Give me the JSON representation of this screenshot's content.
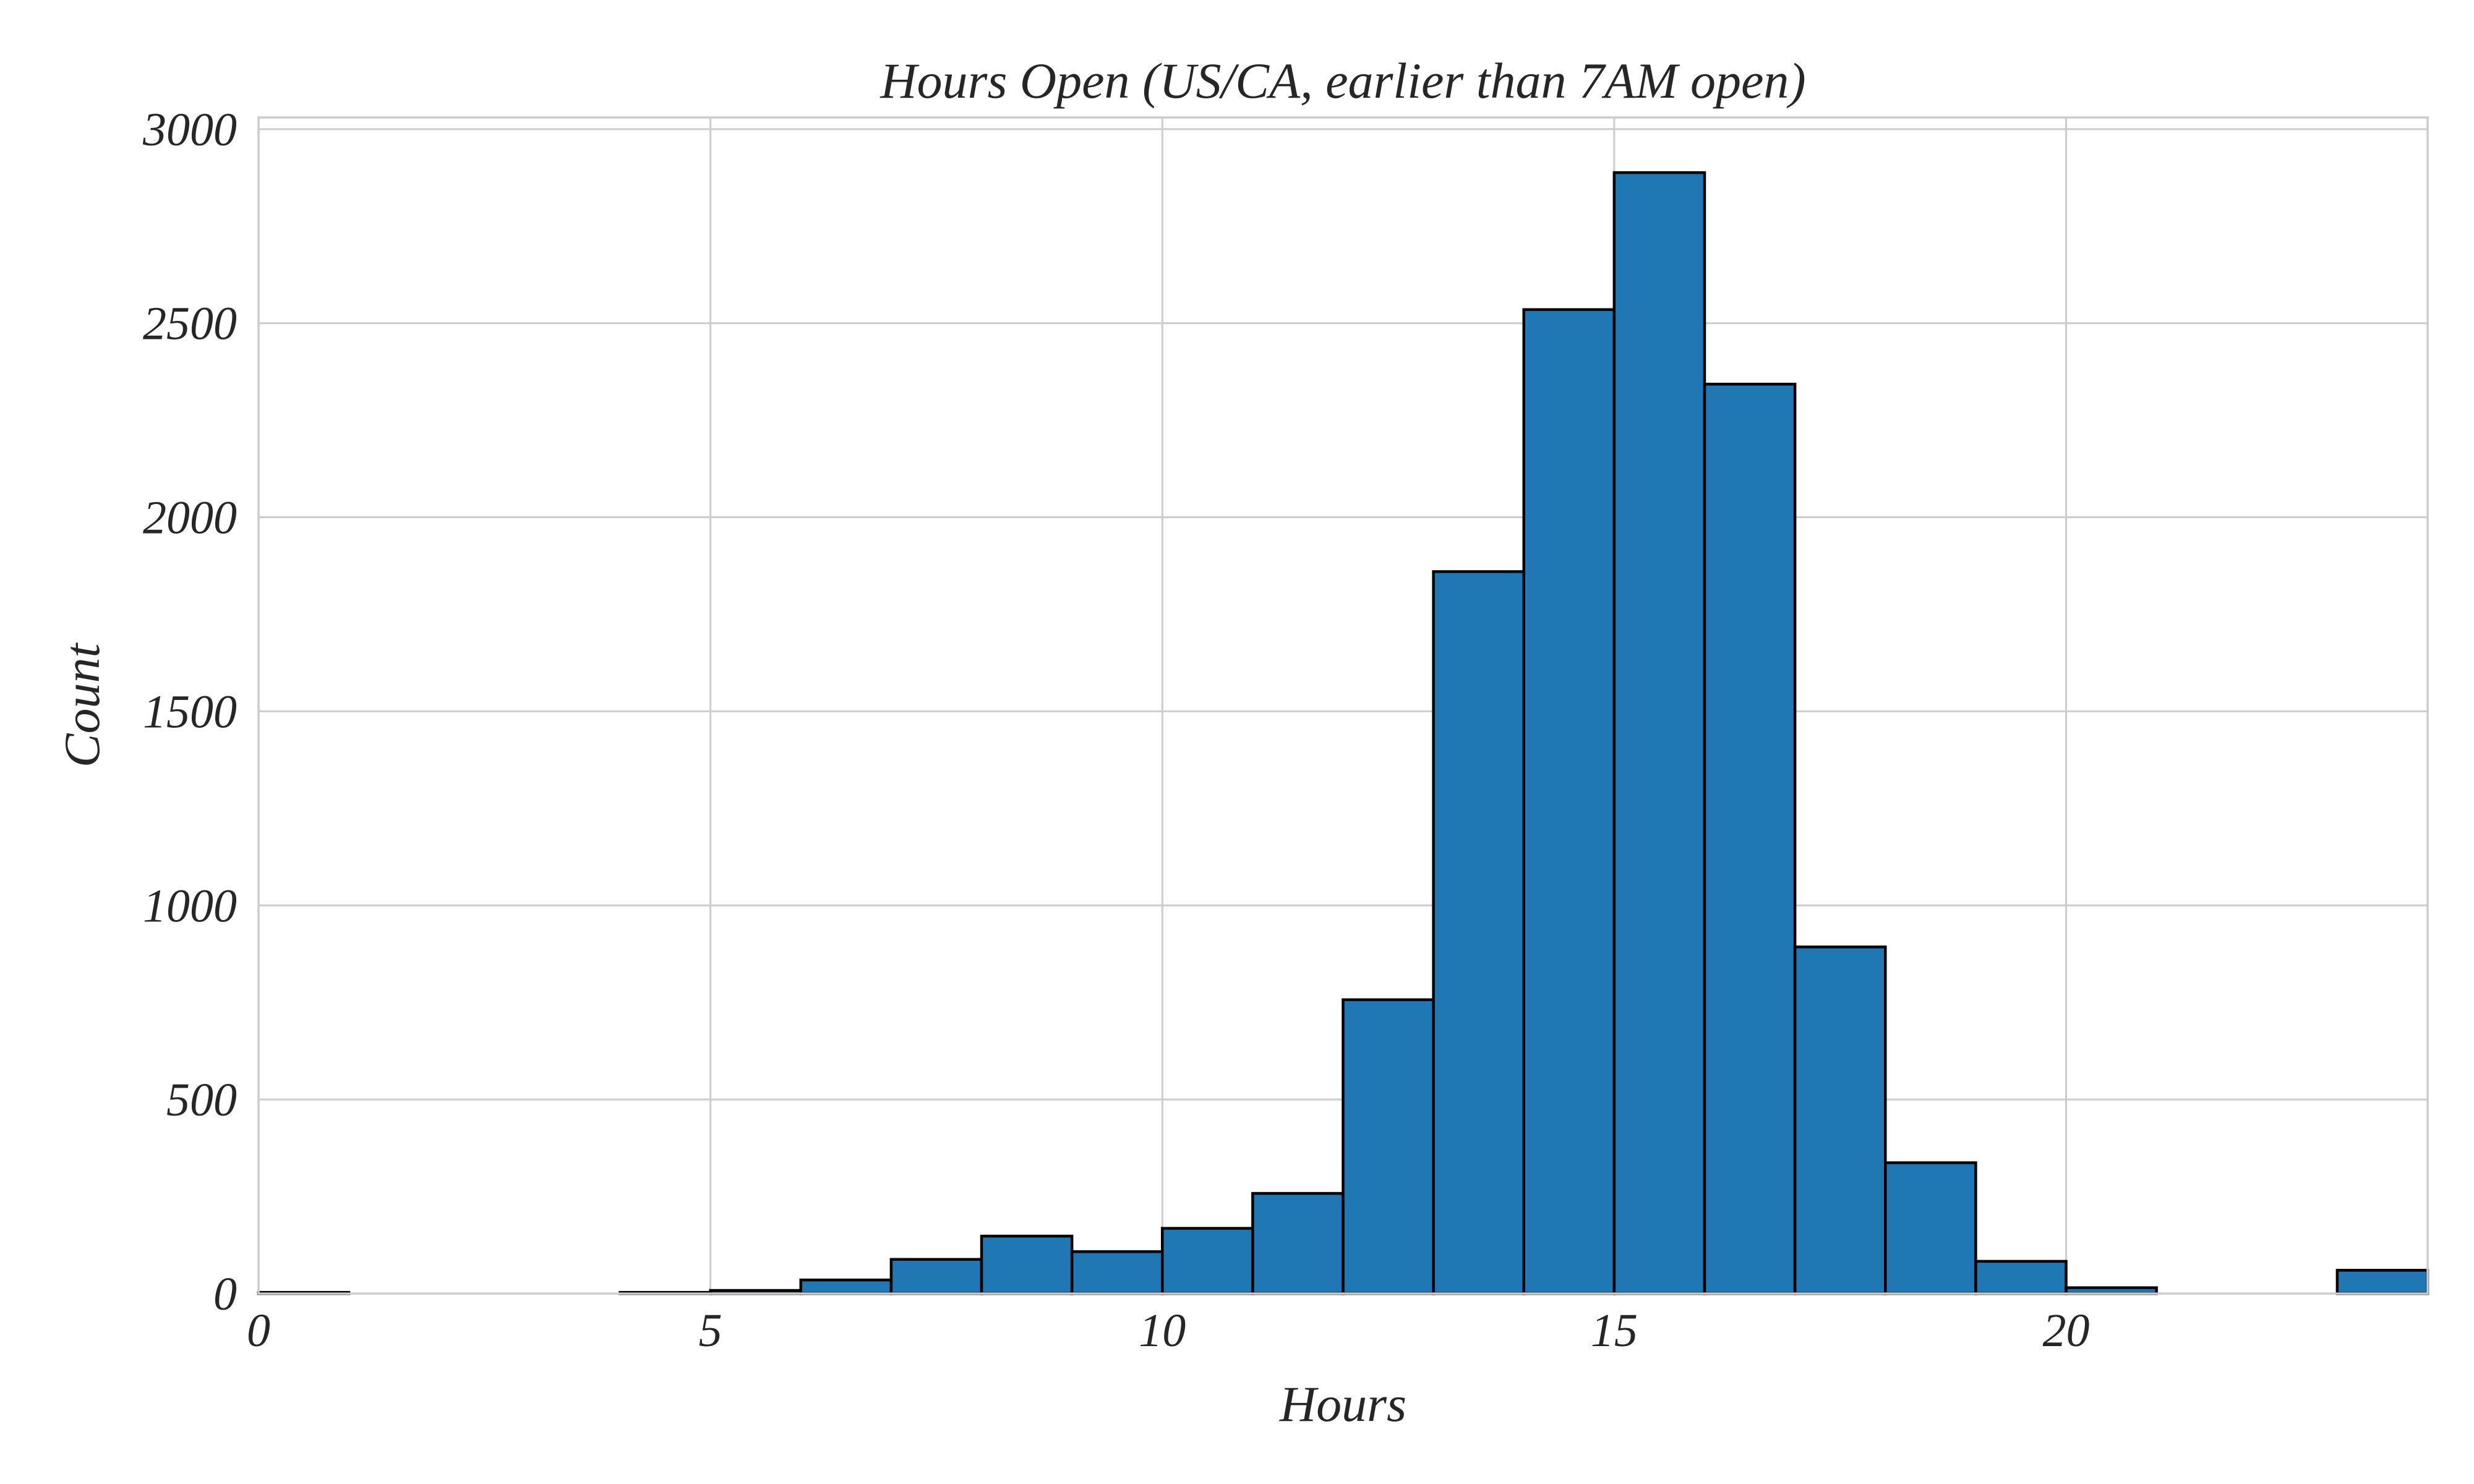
{
  "chart_data": {
    "type": "bar",
    "title": "Hours Open (US/CA, earlier than 7AM open)",
    "xlabel": "Hours",
    "ylabel": "Count",
    "xlim": [
      0,
      24
    ],
    "ylim": [
      0,
      3030
    ],
    "xticks": [
      "0",
      "5",
      "10",
      "15",
      "20"
    ],
    "yticks": [
      "0",
      "500",
      "1000",
      "1500",
      "2000",
      "2500",
      "3000"
    ],
    "grid": true,
    "legend": "none",
    "bar_color": "#1f77b4",
    "edge_color": "#000000",
    "bins": [
      {
        "x0": 0,
        "x1": 1,
        "value": 3
      },
      {
        "x0": 1,
        "x1": 2,
        "value": 0
      },
      {
        "x0": 2,
        "x1": 3,
        "value": 0
      },
      {
        "x0": 3,
        "x1": 4,
        "value": 0
      },
      {
        "x0": 4,
        "x1": 5,
        "value": 3
      },
      {
        "x0": 5,
        "x1": 6,
        "value": 8
      },
      {
        "x0": 6,
        "x1": 7,
        "value": 35
      },
      {
        "x0": 7,
        "x1": 8,
        "value": 88
      },
      {
        "x0": 8,
        "x1": 9,
        "value": 148
      },
      {
        "x0": 9,
        "x1": 10,
        "value": 108
      },
      {
        "x0": 10,
        "x1": 11,
        "value": 168
      },
      {
        "x0": 11,
        "x1": 12,
        "value": 258
      },
      {
        "x0": 12,
        "x1": 13,
        "value": 757
      },
      {
        "x0": 13,
        "x1": 14,
        "value": 1860
      },
      {
        "x0": 14,
        "x1": 15,
        "value": 2535
      },
      {
        "x0": 15,
        "x1": 16,
        "value": 2888
      },
      {
        "x0": 16,
        "x1": 17,
        "value": 2343
      },
      {
        "x0": 17,
        "x1": 18,
        "value": 893
      },
      {
        "x0": 18,
        "x1": 19,
        "value": 337
      },
      {
        "x0": 19,
        "x1": 20,
        "value": 83
      },
      {
        "x0": 20,
        "x1": 21,
        "value": 15
      },
      {
        "x0": 21,
        "x1": 22,
        "value": 0
      },
      {
        "x0": 22,
        "x1": 23,
        "value": 0
      },
      {
        "x0": 23,
        "x1": 24,
        "value": 60
      }
    ]
  }
}
